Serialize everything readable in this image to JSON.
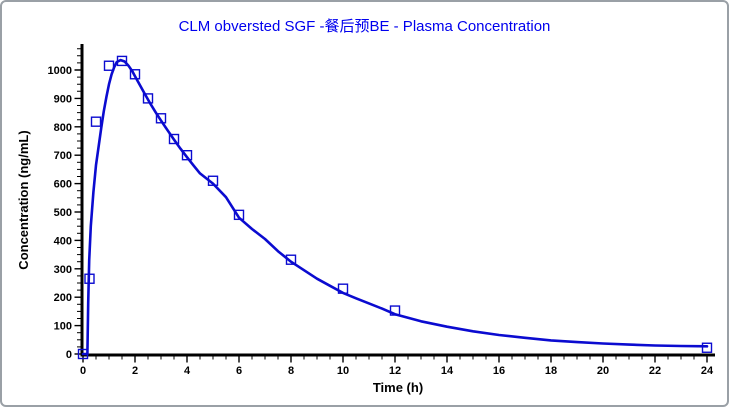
{
  "chart_data": {
    "type": "line",
    "title": "CLM obversted SGF -餐后预BE - Plasma Concentration",
    "xlabel": "Time (h)",
    "ylabel": "Concentration (ng/mL)",
    "xlim": [
      0,
      24.3
    ],
    "ylim": [
      0,
      1090
    ],
    "x_major_ticks": [
      0,
      2,
      4,
      6,
      8,
      10,
      12,
      14,
      16,
      18,
      20,
      22,
      24
    ],
    "y_major_ticks": [
      0,
      100,
      200,
      300,
      400,
      500,
      600,
      700,
      800,
      900,
      1000
    ],
    "x_minor_step": 0.5,
    "y_minor_step": 25,
    "grid": false,
    "legend": "none",
    "colors": {
      "title": "#0000ee",
      "curve": "#0b0bd0",
      "marker": "#0b0bd0",
      "axis": "#000000"
    },
    "series": [
      {
        "name": "fitted-curve",
        "type": "line",
        "color": "#0b0bd0",
        "points": [
          [
            0,
            0
          ],
          [
            0.17,
            0
          ],
          [
            0.2,
            180
          ],
          [
            0.24,
            330
          ],
          [
            0.3,
            450
          ],
          [
            0.4,
            570
          ],
          [
            0.5,
            665
          ],
          [
            0.6,
            730
          ],
          [
            0.7,
            795
          ],
          [
            0.8,
            855
          ],
          [
            0.9,
            905
          ],
          [
            1.0,
            950
          ],
          [
            1.1,
            985
          ],
          [
            1.2,
            1010
          ],
          [
            1.3,
            1028
          ],
          [
            1.45,
            1035
          ],
          [
            1.6,
            1030
          ],
          [
            1.75,
            1015
          ],
          [
            1.9,
            995
          ],
          [
            2.0,
            978
          ],
          [
            2.2,
            945
          ],
          [
            2.4,
            912
          ],
          [
            2.6,
            880
          ],
          [
            2.8,
            850
          ],
          [
            3.0,
            822
          ],
          [
            3.25,
            788
          ],
          [
            3.5,
            755
          ],
          [
            3.75,
            723
          ],
          [
            4.0,
            693
          ],
          [
            4.25,
            664
          ],
          [
            4.5,
            636
          ],
          [
            4.75,
            618
          ],
          [
            5.0,
            600
          ],
          [
            5.5,
            552
          ],
          [
            6.0,
            480
          ],
          [
            6.5,
            440
          ],
          [
            7.0,
            405
          ],
          [
            7.5,
            362
          ],
          [
            8.0,
            325
          ],
          [
            8.5,
            295
          ],
          [
            9.0,
            265
          ],
          [
            9.5,
            240
          ],
          [
            10.0,
            215
          ],
          [
            10.5,
            196
          ],
          [
            11.0,
            178
          ],
          [
            11.5,
            160
          ],
          [
            12.0,
            140
          ],
          [
            13.0,
            115
          ],
          [
            14.0,
            96
          ],
          [
            15.0,
            80
          ],
          [
            16.0,
            67
          ],
          [
            17.0,
            57
          ],
          [
            18.0,
            48
          ],
          [
            19.0,
            42
          ],
          [
            20.0,
            37
          ],
          [
            21.0,
            33
          ],
          [
            22.0,
            30
          ],
          [
            23.0,
            28
          ],
          [
            24.0,
            27
          ]
        ]
      },
      {
        "name": "observed-points",
        "type": "scatter",
        "marker": "open-square",
        "color": "#0b0bd0",
        "points": [
          [
            0,
            0
          ],
          [
            0.25,
            265
          ],
          [
            0.5,
            818
          ],
          [
            1,
            1015
          ],
          [
            1.5,
            1032
          ],
          [
            2,
            985
          ],
          [
            2.5,
            900
          ],
          [
            3,
            830
          ],
          [
            3.5,
            757
          ],
          [
            4,
            700
          ],
          [
            5,
            610
          ],
          [
            6,
            490
          ],
          [
            8,
            332
          ],
          [
            10,
            230
          ],
          [
            12,
            153
          ],
          [
            24,
            22
          ]
        ]
      }
    ]
  }
}
